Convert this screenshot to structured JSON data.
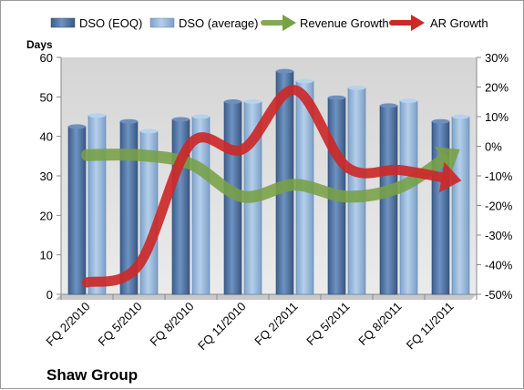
{
  "chart_data": {
    "type": "bar",
    "title": "Shaw Group",
    "ylabel": "Days",
    "ylim": [
      0,
      60
    ],
    "yticks": [
      0,
      10,
      20,
      30,
      40,
      50,
      60
    ],
    "y2lim": [
      -50,
      30
    ],
    "y2ticks": [
      "30%",
      "20%",
      "10%",
      "0%",
      "-10%",
      "-20%",
      "-30%",
      "-40%",
      "-50%"
    ],
    "y2tick_values": [
      30,
      20,
      10,
      0,
      -10,
      -20,
      -30,
      -40,
      -50
    ],
    "categories": [
      "FQ 2/2010",
      "FQ 5/2010",
      "FQ 8/2010",
      "FQ 11/2010",
      "FQ 2/2011",
      "FQ 5/2011",
      "FQ 8/2011",
      "FQ 11/2011"
    ],
    "grid": false,
    "legend": "top",
    "series": [
      {
        "name": "DSO (EOQ)",
        "type": "bar",
        "axis": "left",
        "color": "#4a6c9a",
        "values": [
          42.5,
          43.8,
          44.3,
          48.8,
          56.5,
          49.8,
          47.8,
          43.8
        ]
      },
      {
        "name": "DSO (average)",
        "type": "bar",
        "axis": "left",
        "color": "#8fb3d9",
        "values": [
          45.3,
          41.3,
          45.0,
          48.8,
          54.0,
          52.3,
          49.0,
          45.0
        ]
      },
      {
        "name": "Revenue Growth",
        "type": "line",
        "axis": "right",
        "color": "#77a145",
        "values": [
          -3,
          -3,
          -6,
          -17,
          -13,
          -17,
          -14,
          -3
        ]
      },
      {
        "name": "AR Growth",
        "type": "line",
        "axis": "right",
        "color": "#cc2929",
        "values": [
          -46,
          -40,
          1,
          -1,
          19,
          -7,
          -8,
          -11
        ]
      }
    ]
  }
}
